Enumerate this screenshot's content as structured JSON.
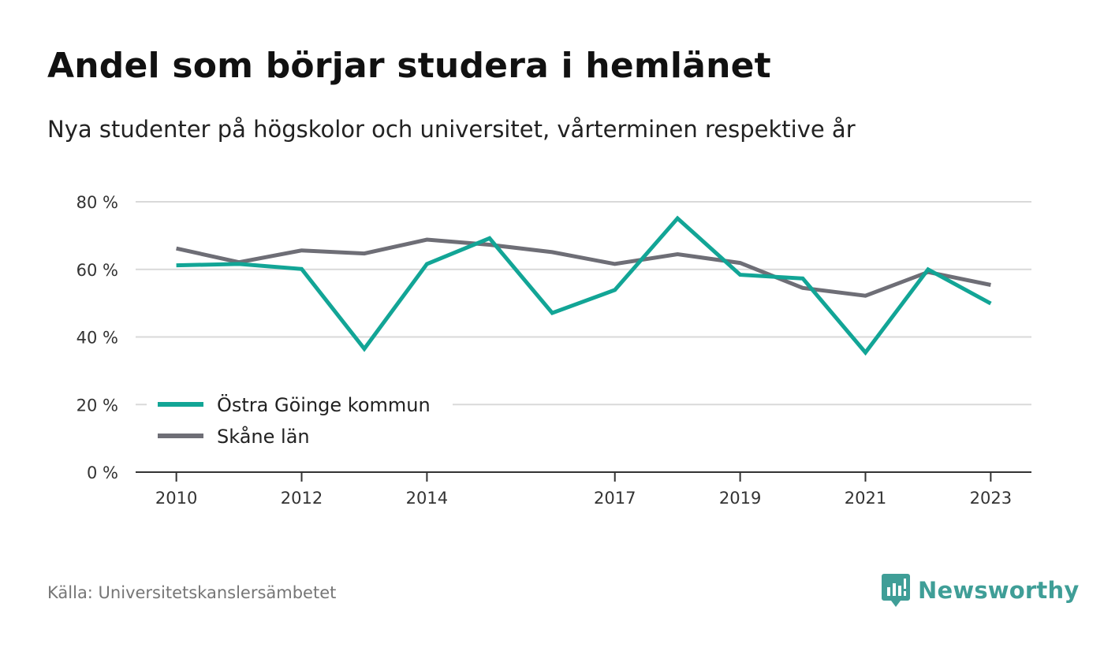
{
  "chart_data": {
    "type": "line",
    "title": "Andel som börjar studera i hemlänet",
    "subtitle": "Nya studenter på högskolor och universitet, vårterminen respektive år",
    "x": [
      2010,
      2011,
      2012,
      2013,
      2014,
      2015,
      2016,
      2017,
      2018,
      2019,
      2020,
      2021,
      2022,
      2023
    ],
    "x_tick_labels": [
      "2010",
      "2012",
      "2014",
      "2017",
      "2019",
      "2021",
      "2023"
    ],
    "x_tick_values": [
      2010,
      2012,
      2014,
      2017,
      2019,
      2021,
      2023
    ],
    "y_ticks": [
      0,
      20,
      40,
      60,
      80
    ],
    "y_tick_labels": [
      "0 %",
      "20 %",
      "40 %",
      "60 %",
      "80 %"
    ],
    "ylim": [
      0,
      80
    ],
    "xlim": [
      2009.35,
      2023.65
    ],
    "grid": true,
    "legend_position": "bottom-left",
    "series": [
      {
        "name": "Östra Göinge kommun",
        "color": "#12a596",
        "values": [
          61.2,
          61.6,
          60.1,
          36.5,
          61.6,
          69.2,
          47.1,
          53.9,
          75.1,
          58.4,
          57.3,
          35.4,
          60.0,
          49.9
        ]
      },
      {
        "name": "Skåne län",
        "color": "#6e6e76",
        "values": [
          66.2,
          62.1,
          65.6,
          64.7,
          68.8,
          67.3,
          65.1,
          61.6,
          64.5,
          61.9,
          54.5,
          52.2,
          59.2,
          55.4
        ]
      }
    ]
  },
  "source": "Källa: Universitetskanslersämbetet",
  "brand": {
    "name": "Newsworthy",
    "color": "#3f9e97",
    "icon": "newsworthy-logo-icon"
  }
}
